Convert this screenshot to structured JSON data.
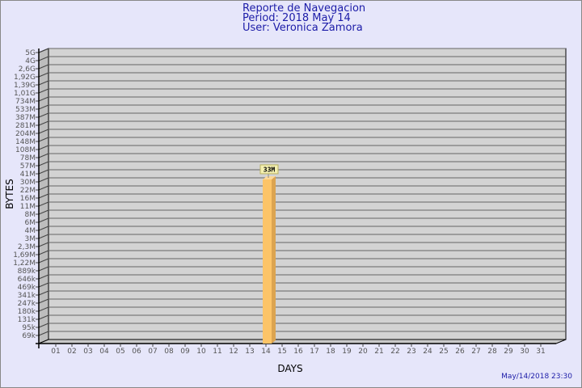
{
  "header": {
    "title": "Reporte de Navegacion",
    "period": "Period: 2018 May 14",
    "user": "User: Veronica Zamora"
  },
  "footer": {
    "timestamp": "May/14/2018 23:30"
  },
  "colors": {
    "background": "#e6e6fa",
    "wall": "#d3d3d3",
    "bar": "#fcc468",
    "bar_side": "#dca450",
    "title": "#1c1ca8"
  },
  "chart_data": {
    "type": "bar",
    "xlabel": "DAYS",
    "ylabel": "BYTES",
    "y_scale": "log",
    "y_ticks": [
      "5G",
      "4G",
      "2,6G",
      "1,92G",
      "1,39G",
      "1,01G",
      "734M",
      "533M",
      "387M",
      "281M",
      "204M",
      "148M",
      "108M",
      "78M",
      "57M",
      "41M",
      "30M",
      "22M",
      "16M",
      "11M",
      "8M",
      "6M",
      "4M",
      "3M",
      "2,3M",
      "1,69M",
      "1,22M",
      "889k",
      "646k",
      "469k",
      "341k",
      "247k",
      "180k",
      "131k",
      "95k",
      "69k"
    ],
    "categories": [
      "01",
      "02",
      "03",
      "04",
      "05",
      "06",
      "07",
      "08",
      "09",
      "10",
      "11",
      "12",
      "13",
      "14",
      "15",
      "16",
      "17",
      "18",
      "19",
      "20",
      "21",
      "22",
      "23",
      "24",
      "25",
      "26",
      "27",
      "28",
      "29",
      "30",
      "31"
    ],
    "values": [
      0,
      0,
      0,
      0,
      0,
      0,
      0,
      0,
      0,
      0,
      0,
      0,
      0,
      33000000,
      0,
      0,
      0,
      0,
      0,
      0,
      0,
      0,
      0,
      0,
      0,
      0,
      0,
      0,
      0,
      0,
      0
    ],
    "data_labels": {
      "14": "33M"
    },
    "grid": true
  }
}
